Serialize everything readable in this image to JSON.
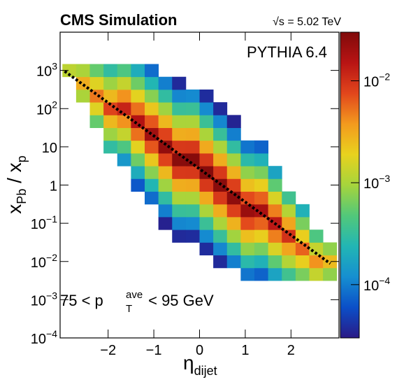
{
  "chart_data": {
    "type": "heatmap",
    "title": "CMS Simulation",
    "subtitle": "√s = 5.02 TeV",
    "annotations": [
      {
        "text": "PYTHIA 6.4"
      },
      {
        "parts": [
          "75 < p",
          "T",
          "ave",
          " < 95 GeV"
        ]
      }
    ],
    "xlabel": {
      "main": "η",
      "sub": "dijet"
    },
    "ylabel": {
      "parts": [
        "x",
        "Pb",
        " / x",
        "p"
      ]
    },
    "xlim": [
      -3.05,
      3.05
    ],
    "xticks": [
      {
        "value": -2,
        "label": "−2"
      },
      {
        "value": -1,
        "label": "−1"
      },
      0,
      1,
      2
    ],
    "ylim": [
      0.0001,
      10000
    ],
    "ylog": true,
    "yticks": [
      {
        "value": 0.0001,
        "label": "10",
        "exponent": "−4"
      },
      {
        "value": 0.001,
        "label": "10",
        "exponent": "−3"
      },
      {
        "value": 0.01,
        "label": "10",
        "exponent": "−2"
      },
      {
        "value": 0.1,
        "label": "10",
        "exponent": "−1"
      },
      1,
      10,
      {
        "value": 100,
        "label": "10",
        "exponent": "2"
      },
      {
        "value": 1000,
        "label": "10",
        "exponent": "3"
      }
    ],
    "zlim": [
      3e-05,
      0.03
    ],
    "zlog": true,
    "zticks": [
      {
        "value": 0.0001,
        "label": "10",
        "exponent": "−4"
      },
      {
        "value": 0.001,
        "label": "10",
        "exponent": "−3"
      },
      {
        "value": 0.01,
        "label": "10",
        "exponent": "−2"
      }
    ],
    "colors": [
      "#2a1a86",
      "#0b4fc8",
      "#168fd0",
      "#22b6b4",
      "#52c87a",
      "#a6d43c",
      "#e8d21e",
      "#f39a1e",
      "#e2461c",
      "#b81414",
      "#800a0a"
    ],
    "xbins": [
      -3,
      -2.7,
      -2.4,
      -2.1,
      -1.8,
      -1.5,
      -1.2,
      -0.9,
      -0.6,
      -0.3,
      0,
      0.3,
      0.6,
      0.9,
      1.2,
      1.5,
      1.8,
      2.1,
      2.4,
      2.7,
      3
    ],
    "ybins": [
      0.00316,
      0.00681,
      0.0147,
      0.0316,
      0.0681,
      0.147,
      0.316,
      0.681,
      1.47,
      3.16,
      6.81,
      14.7,
      31.6,
      68.1,
      147,
      316,
      681,
      1468,
      3162
    ],
    "values": [
      [
        null,
        null,
        null,
        null,
        null,
        null,
        null,
        null,
        null,
        null,
        null,
        null,
        null,
        null,
        null,
        null,
        0.0012,
        null
      ],
      [
        null,
        null,
        null,
        null,
        null,
        null,
        null,
        null,
        null,
        null,
        null,
        null,
        null,
        null,
        0.001,
        0.003,
        0.001,
        null
      ],
      [
        null,
        null,
        null,
        null,
        null,
        null,
        null,
        null,
        null,
        null,
        null,
        null,
        0.00055,
        0.0017,
        0.005,
        0.0017,
        0.00055,
        null
      ],
      [
        null,
        null,
        null,
        null,
        null,
        null,
        null,
        null,
        null,
        null,
        0.0003,
        0.00088,
        0.0026,
        0.008,
        0.0026,
        0.00088,
        0.0003,
        null
      ],
      [
        null,
        null,
        null,
        null,
        null,
        null,
        null,
        null,
        null,
        0.00014,
        0.00044,
        0.0013,
        0.004,
        0.012,
        0.004,
        0.0013,
        0.00044,
        null
      ],
      [
        null,
        null,
        null,
        null,
        null,
        null,
        null,
        6.6e-05,
        0.0002,
        0.0006,
        0.0018,
        0.0053,
        0.016,
        0.0053,
        0.0018,
        0.0006,
        0.0002,
        null
      ],
      [
        null,
        null,
        null,
        null,
        null,
        null,
        8.2e-05,
        0.00024,
        0.00074,
        0.0022,
        0.0066,
        0.02,
        0.0066,
        0.0022,
        0.00074,
        0.00024,
        8.2e-05,
        null
      ],
      [
        null,
        null,
        null,
        null,
        3.3e-05,
        0.0001,
        0.0003,
        0.0009,
        0.0026,
        0.008,
        0.024,
        0.008,
        0.0026,
        0.0009,
        0.0003,
        0.0001,
        null,
        null
      ],
      [
        null,
        null,
        null,
        3.7e-05,
        0.00011,
        0.00033,
        0.001,
        0.003,
        0.009,
        0.027,
        0.009,
        0.003,
        0.001,
        0.00033,
        0.00011,
        3.7e-05,
        null,
        null
      ],
      [
        null,
        null,
        null,
        3.8e-05,
        0.000115,
        0.00034,
        0.001,
        0.0031,
        0.0092,
        0.028,
        0.0092,
        0.0031,
        0.001,
        0.00034,
        0.000115,
        null,
        null,
        null
      ],
      [
        null,
        null,
        3.8e-05,
        0.000115,
        0.00034,
        0.001,
        0.0031,
        0.0092,
        0.028,
        0.0092,
        0.0031,
        0.001,
        0.00034,
        0.000115,
        3.8e-05,
        null,
        null,
        null
      ],
      [
        null,
        3.7e-05,
        0.00011,
        0.00033,
        0.001,
        0.003,
        0.009,
        0.027,
        0.009,
        0.003,
        0.001,
        0.00033,
        0.00011,
        3.7e-05,
        null,
        null,
        null,
        null
      ],
      [
        null,
        0.0001,
        0.0003,
        0.00092,
        0.0028,
        0.0083,
        0.025,
        0.0083,
        0.0028,
        0.00092,
        0.0003,
        0.0001,
        3.4e-05,
        null,
        null,
        null,
        null,
        null
      ],
      [
        9e-05,
        0.00027,
        0.0008,
        0.0024,
        0.0073,
        0.022,
        0.0073,
        0.0024,
        0.0008,
        0.00027,
        9e-05,
        null,
        null,
        null,
        null,
        null,
        null,
        null
      ],
      [
        7.4e-05,
        0.00022,
        0.00066,
        0.002,
        0.006,
        0.018,
        0.006,
        0.002,
        0.00066,
        0.00022,
        7.4e-05,
        null,
        null,
        null,
        null,
        null,
        null,
        null
      ],
      [
        0.00017,
        0.00052,
        0.0016,
        0.0047,
        0.014,
        0.0047,
        0.0016,
        0.00052,
        0.00017,
        null,
        null,
        null,
        null,
        null,
        null,
        null,
        null,
        null
      ],
      [
        0.00037,
        0.0011,
        0.0033,
        0.01,
        0.0033,
        0.0011,
        0.00037,
        null,
        null,
        null,
        null,
        null,
        null,
        null,
        null,
        null,
        null,
        null
      ],
      [
        0.00066,
        0.002,
        0.006,
        0.002,
        0.00066,
        0.00022,
        null,
        null,
        null,
        null,
        null,
        null,
        null,
        null,
        null,
        null,
        null,
        null
      ],
      [
        0.0013,
        0.004,
        0.0013,
        0.00044,
        null,
        null,
        null,
        null,
        null,
        null,
        null,
        null,
        null,
        null,
        null,
        null,
        null,
        null
      ],
      [
        0.0008,
        0.0025,
        0.0008,
        null,
        null,
        null,
        null,
        null,
        null,
        null,
        null,
        null,
        null,
        null,
        null,
        null,
        null,
        null
      ]
    ],
    "fit_line": {
      "x": [
        -2.95,
        2.86
      ],
      "y": [
        950,
        0.0088
      ]
    }
  }
}
